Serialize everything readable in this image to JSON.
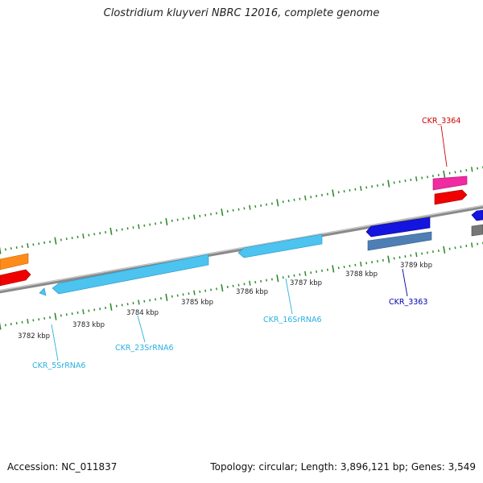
{
  "title": "Clostridium kluyveri NBRC 12016, complete genome",
  "footer": {
    "accession": "Accession: NC_011837",
    "stats": "Topology: circular; Length: 3,896,121 bp; Genes: 3,549"
  },
  "colors": {
    "backbone": "#8a8a8a",
    "ruler_ticks": "#2e8b2e",
    "rrna": "#4dc3f0",
    "cds_blue": "#1515e0",
    "cds_steel": "#4e7fb4",
    "cds_red": "#f00000",
    "cds_pink": "#f02aa0",
    "cds_orange": "#ff8c1a",
    "cds_gray": "#777777",
    "label_rrna": "#2ab0e0",
    "label_red": "#cc0000",
    "label_blue": "#0000aa"
  },
  "ruler_labels": [
    "3782 kbp",
    "3783 kbp",
    "3784 kbp",
    "3785 kbp",
    "3786 kbp",
    "3787 kbp",
    "3788 kbp",
    "3789 kbp"
  ],
  "feature_labels": {
    "ckr_5s": "CKR_5SrRNA6",
    "ckr_23s": "CKR_23SrRNA6",
    "ckr_16s": "CKR_16SrRNA6",
    "ckr_3363": "CKR_3363",
    "ckr_3364": "CKR_3364"
  }
}
